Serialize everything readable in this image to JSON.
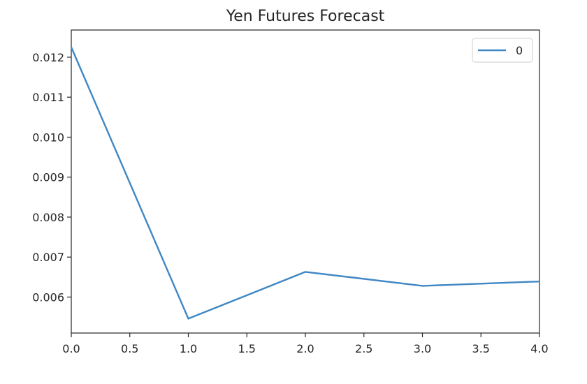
{
  "chart_data": {
    "type": "line",
    "title": "Yen Futures Forecast",
    "xlabel": "",
    "ylabel": "",
    "xlim": [
      0.0,
      4.0
    ],
    "ylim": [
      0.0051,
      0.01268
    ],
    "x_ticks": [
      0.0,
      0.5,
      1.0,
      1.5,
      2.0,
      2.5,
      3.0,
      3.5,
      4.0
    ],
    "x_tick_labels": [
      "0.0",
      "0.5",
      "1.0",
      "1.5",
      "2.0",
      "2.5",
      "3.0",
      "3.5",
      "4.0"
    ],
    "y_ticks": [
      0.006,
      0.007,
      0.008,
      0.009,
      0.01,
      0.011,
      0.012
    ],
    "y_tick_labels": [
      "0.006",
      "0.007",
      "0.008",
      "0.009",
      "0.010",
      "0.011",
      "0.012"
    ],
    "grid": false,
    "legend_position": "top-right",
    "series": [
      {
        "name": "0",
        "color": "#3f87c4",
        "x": [
          0,
          1,
          2,
          3,
          4
        ],
        "y": [
          0.01225,
          0.00546,
          0.00663,
          0.00628,
          0.00639
        ]
      }
    ]
  }
}
